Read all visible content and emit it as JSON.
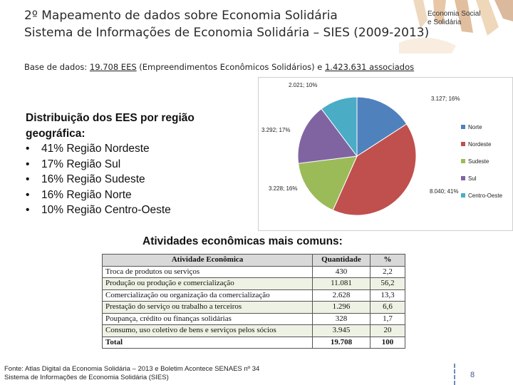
{
  "header": {
    "title_line1": "2º Mapeamento de dados sobre  Economia Solidária",
    "title_line2": "Sistema de Informações de Economia Solidária – SIES (2009-2013)",
    "brand_line1": "Economia Social",
    "brand_line2": "e Solidária"
  },
  "base": {
    "prefix": "Base de dados: ",
    "ees_count": "19.708 EES",
    "ees_desc": " (Empreendimentos Econômicos Solidários)  e ",
    "assoc": "1.423.631 associados"
  },
  "distribution": {
    "heading": "Distribuição dos EES por região geográfica:",
    "items": [
      "41% Região Nordeste",
      "17% Região Sul",
      "16% Região Sudeste",
      "16% Região Norte",
      "10% Região Centro-Oeste"
    ]
  },
  "chart_data": {
    "type": "pie",
    "series": [
      {
        "name": "Norte",
        "value": 3127,
        "percent": 16,
        "label": "3.127; 16%",
        "color": "#4f81bd"
      },
      {
        "name": "Nordeste",
        "value": 8040,
        "percent": 41,
        "label": "8.040; 41%",
        "color": "#c0504d"
      },
      {
        "name": "Sudeste",
        "value": 3228,
        "percent": 16,
        "label": "3.228; 16%",
        "color": "#9bbb59"
      },
      {
        "name": "Sul",
        "value": 3292,
        "percent": 17,
        "label": "3.292; 17%",
        "color": "#8064a2"
      },
      {
        "name": "Centro-Oeste",
        "value": 2021,
        "percent": 10,
        "label": "2.021; 10%",
        "color": "#4bacc6"
      }
    ],
    "legend_position": "right"
  },
  "activities": {
    "heading": "Atividades econômicas mais comuns:",
    "columns": [
      "Atividade Econômica",
      "Quantidade",
      "%"
    ],
    "rows": [
      [
        "Troca de produtos ou serviços",
        "430",
        "2,2"
      ],
      [
        "Produção ou produção e comercialização",
        "11.081",
        "56,2"
      ],
      [
        "Comercialização ou organização da comercialização",
        "2.628",
        "13,3"
      ],
      [
        "Prestação do serviço ou trabalho a terceiros",
        "1.296",
        "6,6"
      ],
      [
        "Poupança, crédito ou finanças solidárias",
        "328",
        "1,7"
      ],
      [
        "Consumo, uso coletivo de bens e serviços pelos sócios",
        "3.945",
        "20"
      ]
    ],
    "total": [
      "Total",
      "19.708",
      "100"
    ]
  },
  "footer": {
    "line1": "Fonte: Atlas Digital da Economia Solidária – 2013 e Boletim Acontece SENAES nº 34",
    "line2": "Sistema  de Informações de Economia Solidária (SIES)",
    "page_number": "8"
  },
  "colors": {
    "header_table": "#d9d9d9",
    "row_tint": "#eef2e4",
    "separator": "#6c8cb8"
  }
}
